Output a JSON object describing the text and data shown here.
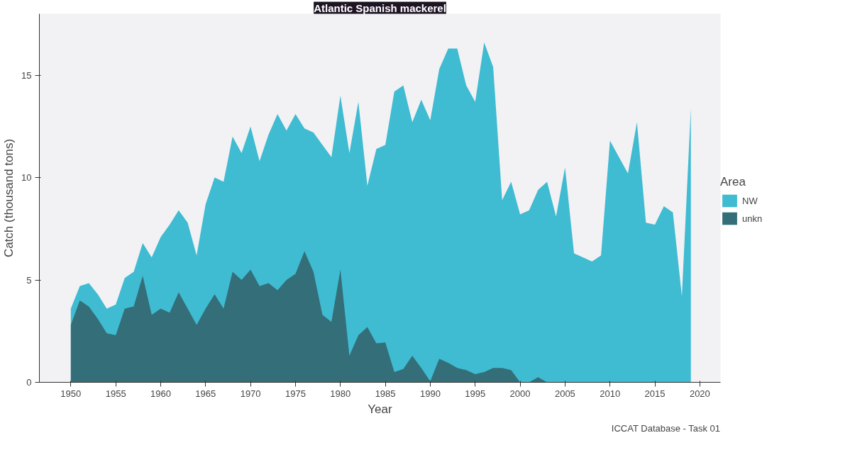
{
  "chart_data": {
    "type": "area",
    "title": "Atlantic Spanish mackerel",
    "xlabel": "Year",
    "ylabel": "Catch (thousand tons)",
    "legend_title": "Area",
    "legend": "right",
    "grid": false,
    "annotations": [
      "ICCAT Database - Task 01"
    ],
    "xlim": [
      1946.5,
      2022.3
    ],
    "xticks": [
      1950,
      1955,
      1960,
      1965,
      1970,
      1975,
      1980,
      1985,
      1990,
      1995,
      2000,
      2005,
      2010,
      2015,
      2020
    ],
    "ylim": [
      0,
      18
    ],
    "yticks": [
      0,
      5,
      10,
      15
    ],
    "series": [
      {
        "name": "NW",
        "color": "#3fbbd2",
        "x": [
          1950,
          1951,
          1952,
          1953,
          1954,
          1955,
          1956,
          1957,
          1958,
          1959,
          1960,
          1961,
          1962,
          1963,
          1964,
          1965,
          1966,
          1967,
          1968,
          1969,
          1970,
          1971,
          1972,
          1973,
          1974,
          1975,
          1976,
          1977,
          1978,
          1979,
          1980,
          1981,
          1982,
          1983,
          1984,
          1985,
          1986,
          1987,
          1988,
          1989,
          1990,
          1991,
          1992,
          1993,
          1994,
          1995,
          1996,
          1997,
          1998,
          1999,
          2000,
          2001,
          2002,
          2003,
          2004,
          2005,
          2006,
          2007,
          2008,
          2009,
          2010,
          2011,
          2012,
          2013,
          2014,
          2015,
          2016,
          2017,
          2018,
          2019
        ],
        "values": [
          3.6,
          4.7,
          4.85,
          4.3,
          3.6,
          3.8,
          5.1,
          5.4,
          6.8,
          6.1,
          7.1,
          7.7,
          8.4,
          7.8,
          6.2,
          8.7,
          10.0,
          9.8,
          12.0,
          11.2,
          12.5,
          10.8,
          12.1,
          13.1,
          12.3,
          13.1,
          12.4,
          12.2,
          11.6,
          11.0,
          14.0,
          11.2,
          13.7,
          9.6,
          11.4,
          11.6,
          14.2,
          14.5,
          12.7,
          13.8,
          12.8,
          15.3,
          16.3,
          16.3,
          14.5,
          13.7,
          16.6,
          15.4,
          8.9,
          9.8,
          8.2,
          8.4,
          9.4,
          9.8,
          8.1,
          10.5,
          6.3,
          6.1,
          5.9,
          6.2,
          11.8,
          11.0,
          10.2,
          12.7,
          7.8,
          7.7,
          8.6,
          8.3,
          4.2,
          13.4
        ]
      },
      {
        "name": "unkn",
        "color": "#346e78",
        "x": [
          1950,
          1951,
          1952,
          1953,
          1954,
          1955,
          1956,
          1957,
          1958,
          1959,
          1960,
          1961,
          1962,
          1963,
          1964,
          1965,
          1966,
          1967,
          1968,
          1969,
          1970,
          1971,
          1972,
          1973,
          1974,
          1975,
          1976,
          1977,
          1978,
          1979,
          1980,
          1981,
          1982,
          1983,
          1984,
          1985,
          1986,
          1987,
          1988,
          1989,
          1990,
          1991,
          1992,
          1993,
          1994,
          1995,
          1996,
          1997,
          1998,
          1999,
          2000,
          2001,
          2002,
          2003,
          2004,
          2005
        ],
        "values": [
          2.8,
          4.0,
          3.7,
          3.1,
          2.4,
          2.3,
          3.6,
          3.7,
          5.2,
          3.3,
          3.6,
          3.4,
          4.4,
          3.6,
          2.8,
          3.6,
          4.3,
          3.6,
          5.4,
          5.0,
          5.5,
          4.7,
          4.85,
          4.5,
          5.0,
          5.3,
          6.4,
          5.4,
          3.3,
          2.95,
          5.5,
          1.3,
          2.3,
          2.7,
          1.9,
          1.95,
          0.5,
          0.65,
          1.3,
          0.7,
          0.05,
          1.15,
          0.95,
          0.7,
          0.6,
          0.4,
          0.5,
          0.7,
          0.7,
          0.6,
          0,
          0,
          0.25,
          0,
          0,
          0
        ]
      }
    ]
  }
}
